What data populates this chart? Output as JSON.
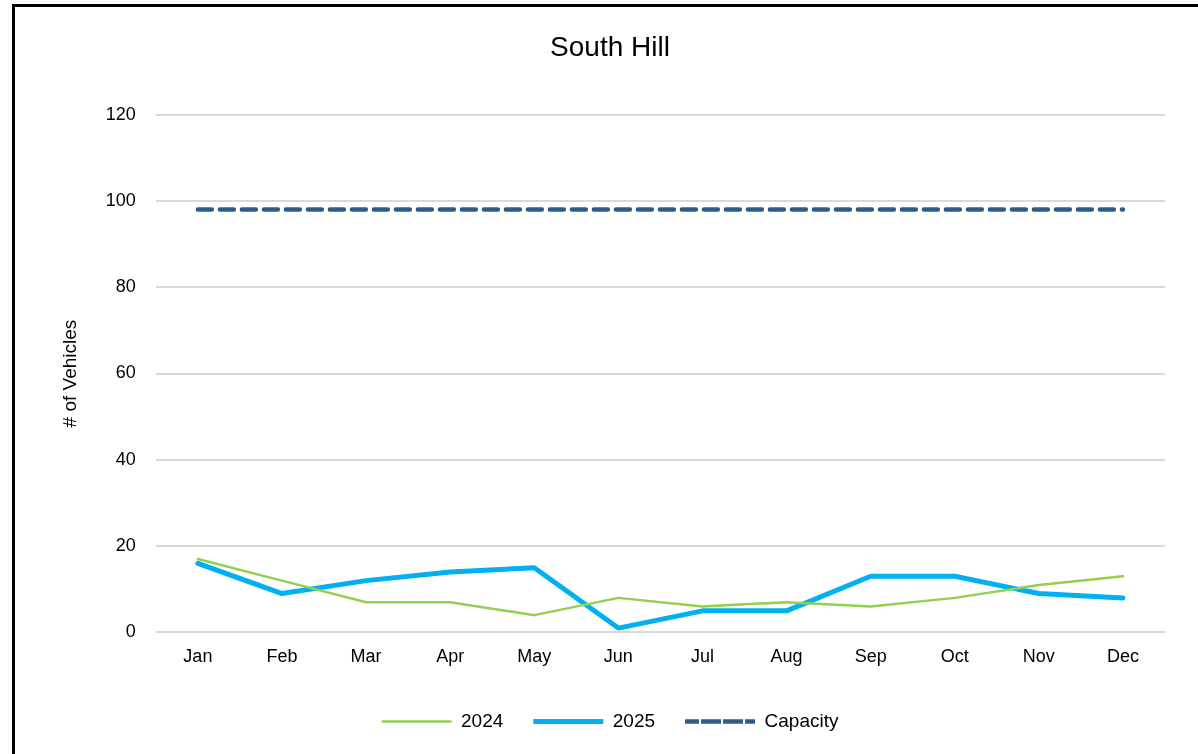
{
  "chart_data": {
    "type": "line",
    "title": "South Hill",
    "ylabel": "# of Vehicles",
    "categories": [
      "Jan",
      "Feb",
      "Mar",
      "Apr",
      "May",
      "Jun",
      "Jul",
      "Aug",
      "Sep",
      "Oct",
      "Nov",
      "Dec"
    ],
    "series": [
      {
        "name": "2024",
        "color": "#92d050",
        "values": [
          17,
          12,
          7,
          7,
          4,
          8,
          6,
          7,
          6,
          8,
          11,
          13
        ]
      },
      {
        "name": "2025",
        "color": "#00b0f0",
        "values": [
          16,
          9,
          12,
          14,
          15,
          1,
          5,
          5,
          13,
          13,
          9,
          8
        ]
      },
      {
        "name": "Capacity",
        "color": "#2e5c8a",
        "line_style": "dashed",
        "values": [
          98,
          98,
          98,
          98,
          98,
          98,
          98,
          98,
          98,
          98,
          98,
          98
        ]
      }
    ],
    "ylim": [
      0,
      120
    ],
    "yticks": [
      0,
      20,
      40,
      60,
      80,
      100,
      120
    ],
    "grid": "y",
    "legend": "bottom",
    "marker": "none"
  }
}
